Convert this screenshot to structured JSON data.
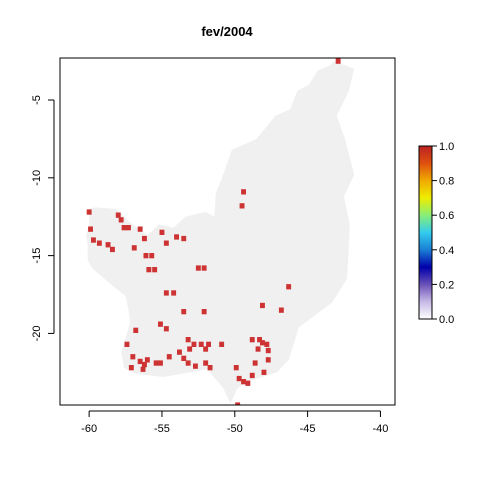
{
  "chart_data": {
    "type": "heatmap",
    "title": "fev/2004",
    "xlabel": "",
    "ylabel": "",
    "xlim": [
      -62,
      -39
    ],
    "ylim": [
      -24.6,
      -2.3
    ],
    "x_ticks": [
      -60,
      -55,
      -50,
      -45,
      -40
    ],
    "x_tick_labels": [
      "-60",
      "-55",
      "-50",
      "-45",
      "-40"
    ],
    "y_ticks": [
      -5,
      -10,
      -15,
      -20
    ],
    "y_tick_labels": [
      "-5",
      "-10",
      "-15",
      "-20"
    ],
    "cell_size_deg": 0.25,
    "background_value": 0.0,
    "background_color": "#f0f0f0",
    "active_value": 1.0,
    "active_color": "#cd3333",
    "land_region_polygon": [
      [
        -43.2,
        -2.5
      ],
      [
        -41.8,
        -3.0
      ],
      [
        -42.2,
        -4.5
      ],
      [
        -43.0,
        -6.0
      ],
      [
        -42.4,
        -7.6
      ],
      [
        -41.8,
        -9.8
      ],
      [
        -42.5,
        -11.2
      ],
      [
        -42.1,
        -13.0
      ],
      [
        -42.2,
        -15.0
      ],
      [
        -42.3,
        -16.5
      ],
      [
        -43.3,
        -18.0
      ],
      [
        -45.6,
        -19.6
      ],
      [
        -46.3,
        -21.7
      ],
      [
        -47.1,
        -22.5
      ],
      [
        -48.8,
        -23.0
      ],
      [
        -49.8,
        -23.5
      ],
      [
        -50.3,
        -24.5
      ],
      [
        -50.8,
        -23.5
      ],
      [
        -51.9,
        -22.3
      ],
      [
        -53.0,
        -22.5
      ],
      [
        -54.9,
        -22.8
      ],
      [
        -56.8,
        -22.6
      ],
      [
        -57.6,
        -22.2
      ],
      [
        -57.8,
        -21.2
      ],
      [
        -57.4,
        -20.0
      ],
      [
        -57.2,
        -19.3
      ],
      [
        -57.3,
        -18.5
      ],
      [
        -57.5,
        -17.6
      ],
      [
        -58.3,
        -17.0
      ],
      [
        -59.2,
        -16.3
      ],
      [
        -59.8,
        -15.8
      ],
      [
        -60.1,
        -15.3
      ],
      [
        -60.1,
        -14.3
      ],
      [
        -60.2,
        -13.7
      ],
      [
        -60.0,
        -13.0
      ],
      [
        -60.0,
        -12.0
      ],
      [
        -59.6,
        -11.9
      ],
      [
        -58.1,
        -12.0
      ],
      [
        -57.3,
        -12.8
      ],
      [
        -56.0,
        -13.7
      ],
      [
        -55.2,
        -13.0
      ],
      [
        -54.2,
        -13.2
      ],
      [
        -53.4,
        -12.5
      ],
      [
        -52.0,
        -12.2
      ],
      [
        -51.4,
        -12.5
      ],
      [
        -51.3,
        -11.0
      ],
      [
        -50.8,
        -9.8
      ],
      [
        -50.2,
        -8.2
      ],
      [
        -48.5,
        -7.5
      ],
      [
        -47.2,
        -6.0
      ],
      [
        -46.2,
        -5.6
      ],
      [
        -45.7,
        -4.4
      ],
      [
        -44.9,
        -4.0
      ],
      [
        -44.3,
        -3.1
      ],
      [
        -43.5,
        -2.8
      ]
    ],
    "active_cells": [
      [
        -42.9,
        -2.5
      ],
      [
        -49.5,
        -11.8
      ],
      [
        -49.4,
        -10.9
      ],
      [
        -46.3,
        -17.0
      ],
      [
        -48.1,
        -18.2
      ],
      [
        -46.8,
        -18.5
      ],
      [
        -60.0,
        -12.2
      ],
      [
        -59.9,
        -13.3
      ],
      [
        -59.7,
        -14.0
      ],
      [
        -59.3,
        -14.2
      ],
      [
        -58.0,
        -12.4
      ],
      [
        -57.8,
        -12.7
      ],
      [
        -57.6,
        -13.2
      ],
      [
        -57.3,
        -13.2
      ],
      [
        -58.4,
        -14.6
      ],
      [
        -58.7,
        -14.3
      ],
      [
        -56.9,
        -14.5
      ],
      [
        -56.5,
        -13.3
      ],
      [
        -56.1,
        -15.0
      ],
      [
        -55.7,
        -15.0
      ],
      [
        -55.5,
        -15.9
      ],
      [
        -55.9,
        -15.9
      ],
      [
        -56.2,
        -13.9
      ],
      [
        -55.0,
        -13.5
      ],
      [
        -54.7,
        -14.2
      ],
      [
        -54.0,
        -13.8
      ],
      [
        -53.5,
        -13.9
      ],
      [
        -54.7,
        -17.4
      ],
      [
        -54.2,
        -17.4
      ],
      [
        -52.5,
        -15.8
      ],
      [
        -52.1,
        -15.8
      ],
      [
        -55.1,
        -19.4
      ],
      [
        -54.7,
        -19.7
      ],
      [
        -53.5,
        -18.6
      ],
      [
        -52.1,
        -18.6
      ],
      [
        -53.2,
        -20.4
      ],
      [
        -52.8,
        -20.7
      ],
      [
        -52.3,
        -20.7
      ],
      [
        -52.0,
        -21.0
      ],
      [
        -51.8,
        -20.7
      ],
      [
        -53.1,
        -21.0
      ],
      [
        -53.5,
        -21.6
      ],
      [
        -53.8,
        -21.2
      ],
      [
        -53.2,
        -21.9
      ],
      [
        -52.7,
        -22.1
      ],
      [
        -50.9,
        -20.7
      ],
      [
        -56.8,
        -19.8
      ],
      [
        -57.4,
        -20.7
      ],
      [
        -57.0,
        -21.5
      ],
      [
        -56.5,
        -21.8
      ],
      [
        -56.2,
        -22.0
      ],
      [
        -56.0,
        -21.7
      ],
      [
        -57.1,
        -22.2
      ],
      [
        -56.3,
        -22.3
      ],
      [
        -55.4,
        -21.9
      ],
      [
        -54.5,
        -21.5
      ],
      [
        -55.1,
        -21.9
      ],
      [
        -52.0,
        -21.9
      ],
      [
        -51.7,
        -22.2
      ],
      [
        -49.9,
        -22.2
      ],
      [
        -48.8,
        -20.4
      ],
      [
        -48.3,
        -20.4
      ],
      [
        -48.1,
        -20.6
      ],
      [
        -47.8,
        -20.7
      ],
      [
        -48.4,
        -21.0
      ],
      [
        -47.7,
        -21.1
      ],
      [
        -47.7,
        -21.7
      ],
      [
        -48.6,
        -21.9
      ],
      [
        -48.0,
        -22.5
      ],
      [
        -48.8,
        -22.7
      ],
      [
        -49.1,
        -23.2
      ],
      [
        -49.7,
        -22.9
      ],
      [
        -49.4,
        -23.1
      ],
      [
        -49.8,
        -24.6
      ]
    ],
    "legend": {
      "placement": "right",
      "min": 0.0,
      "max": 1.0,
      "ticks": [
        1.0,
        0.8,
        0.6,
        0.4,
        0.2,
        0.0
      ],
      "tick_labels": [
        "1.0",
        "0.8",
        "0.6",
        "0.4",
        "0.2",
        "0.0"
      ],
      "gradient_stops": [
        [
          0.0,
          "#ffffff"
        ],
        [
          0.1,
          "#c7b9e6"
        ],
        [
          0.2,
          "#6a50b8"
        ],
        [
          0.3,
          "#0000aa"
        ],
        [
          0.4,
          "#1a7fd6"
        ],
        [
          0.5,
          "#33ccee"
        ],
        [
          0.6,
          "#88ee77"
        ],
        [
          0.7,
          "#eeee00"
        ],
        [
          0.8,
          "#f0aa00"
        ],
        [
          0.9,
          "#e05010"
        ],
        [
          1.0,
          "#bb2222"
        ]
      ]
    }
  }
}
